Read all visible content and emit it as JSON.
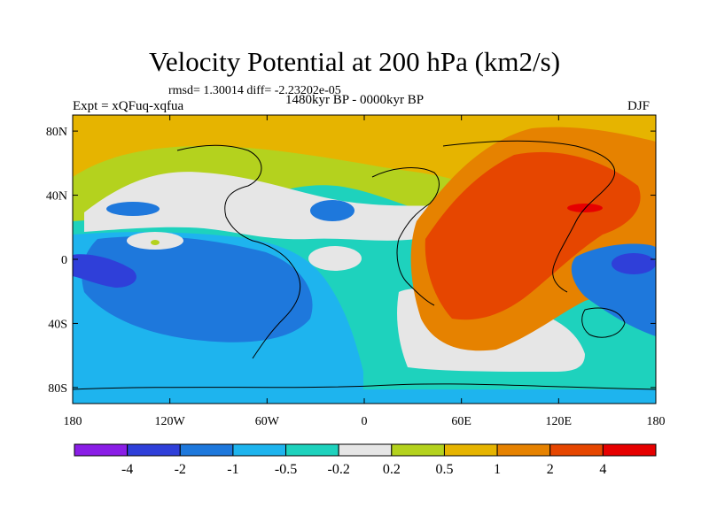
{
  "chart_data": {
    "type": "heatmap",
    "title": "Velocity Potential at 200 hPa (km2/s)",
    "subtitle_stats": "rmsd= 1.30014 diff= -2.23202e-05",
    "left_label": "Expt = xQFuq-xqfua",
    "center_label": "1480kyr BP - 0000kyr BP",
    "right_label": "DJF",
    "x_ticks": [
      "180",
      "120W",
      "60W",
      "0",
      "60E",
      "120E",
      "180"
    ],
    "y_ticks": [
      "80N",
      "40N",
      "0",
      "40S",
      "80S"
    ],
    "colorbar": {
      "labels": [
        "-4",
        "-2",
        "-1",
        "-0.5",
        "-0.2",
        "0.2",
        "0.5",
        "1",
        "2",
        "4"
      ],
      "colors": [
        "#8a1ee6",
        "#2f3fd9",
        "#1e78dc",
        "#1eb4ee",
        "#1ed2bd",
        "#e6e6e6",
        "#b4d21e",
        "#e6b400",
        "#e68200",
        "#e64600",
        "#e60000"
      ]
    },
    "field_features": [
      {
        "name": "north-atlantic-ring",
        "level": "0.2"
      },
      {
        "name": "asia-positive-center",
        "level": "4"
      },
      {
        "name": "pacific-negative-center",
        "level": "-4"
      }
    ]
  }
}
